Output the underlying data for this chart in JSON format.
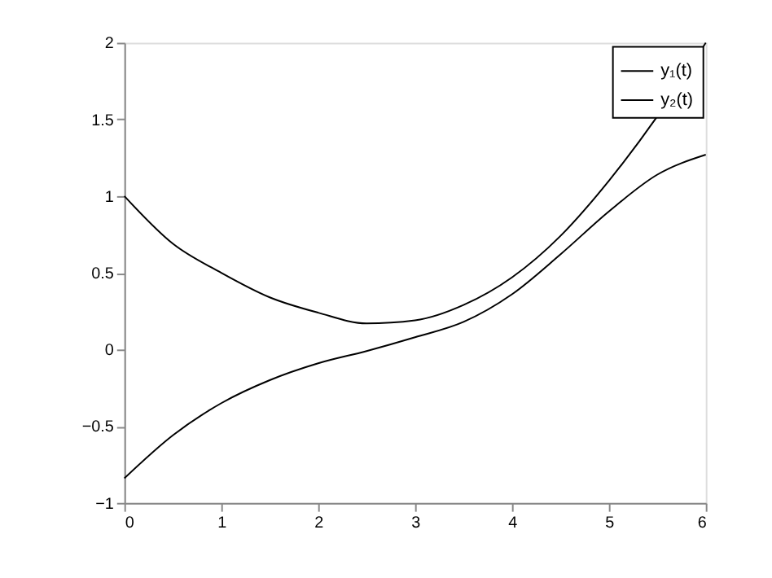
{
  "chart_data": {
    "type": "line",
    "x": [
      0,
      0.5,
      1,
      1.5,
      2,
      2.5,
      3,
      3.5,
      4,
      4.5,
      5,
      5.5,
      6
    ],
    "series": [
      {
        "name": "y₁(t)",
        "color": "#000000",
        "values": [
          1.0,
          0.69,
          0.5,
          0.34,
          0.24,
          0.17,
          0.19,
          0.29,
          0.47,
          0.74,
          1.1,
          1.52,
          2.0
        ]
      },
      {
        "name": "y₂(t)",
        "color": "#000000",
        "values": [
          -0.84,
          -0.56,
          -0.35,
          -0.2,
          -0.09,
          -0.01,
          0.08,
          0.18,
          0.36,
          0.62,
          0.9,
          1.14,
          1.27
        ]
      }
    ],
    "xlim": [
      0,
      6
    ],
    "xticks": [
      0,
      1,
      2,
      3,
      4,
      5,
      6
    ],
    "ylim": [
      -1,
      2
    ],
    "yticks": [
      -1,
      -0.5,
      0,
      0.5,
      1,
      1.5,
      2
    ],
    "grid": false,
    "legend": "top right",
    "marker": "none",
    "line_style": "solid"
  }
}
